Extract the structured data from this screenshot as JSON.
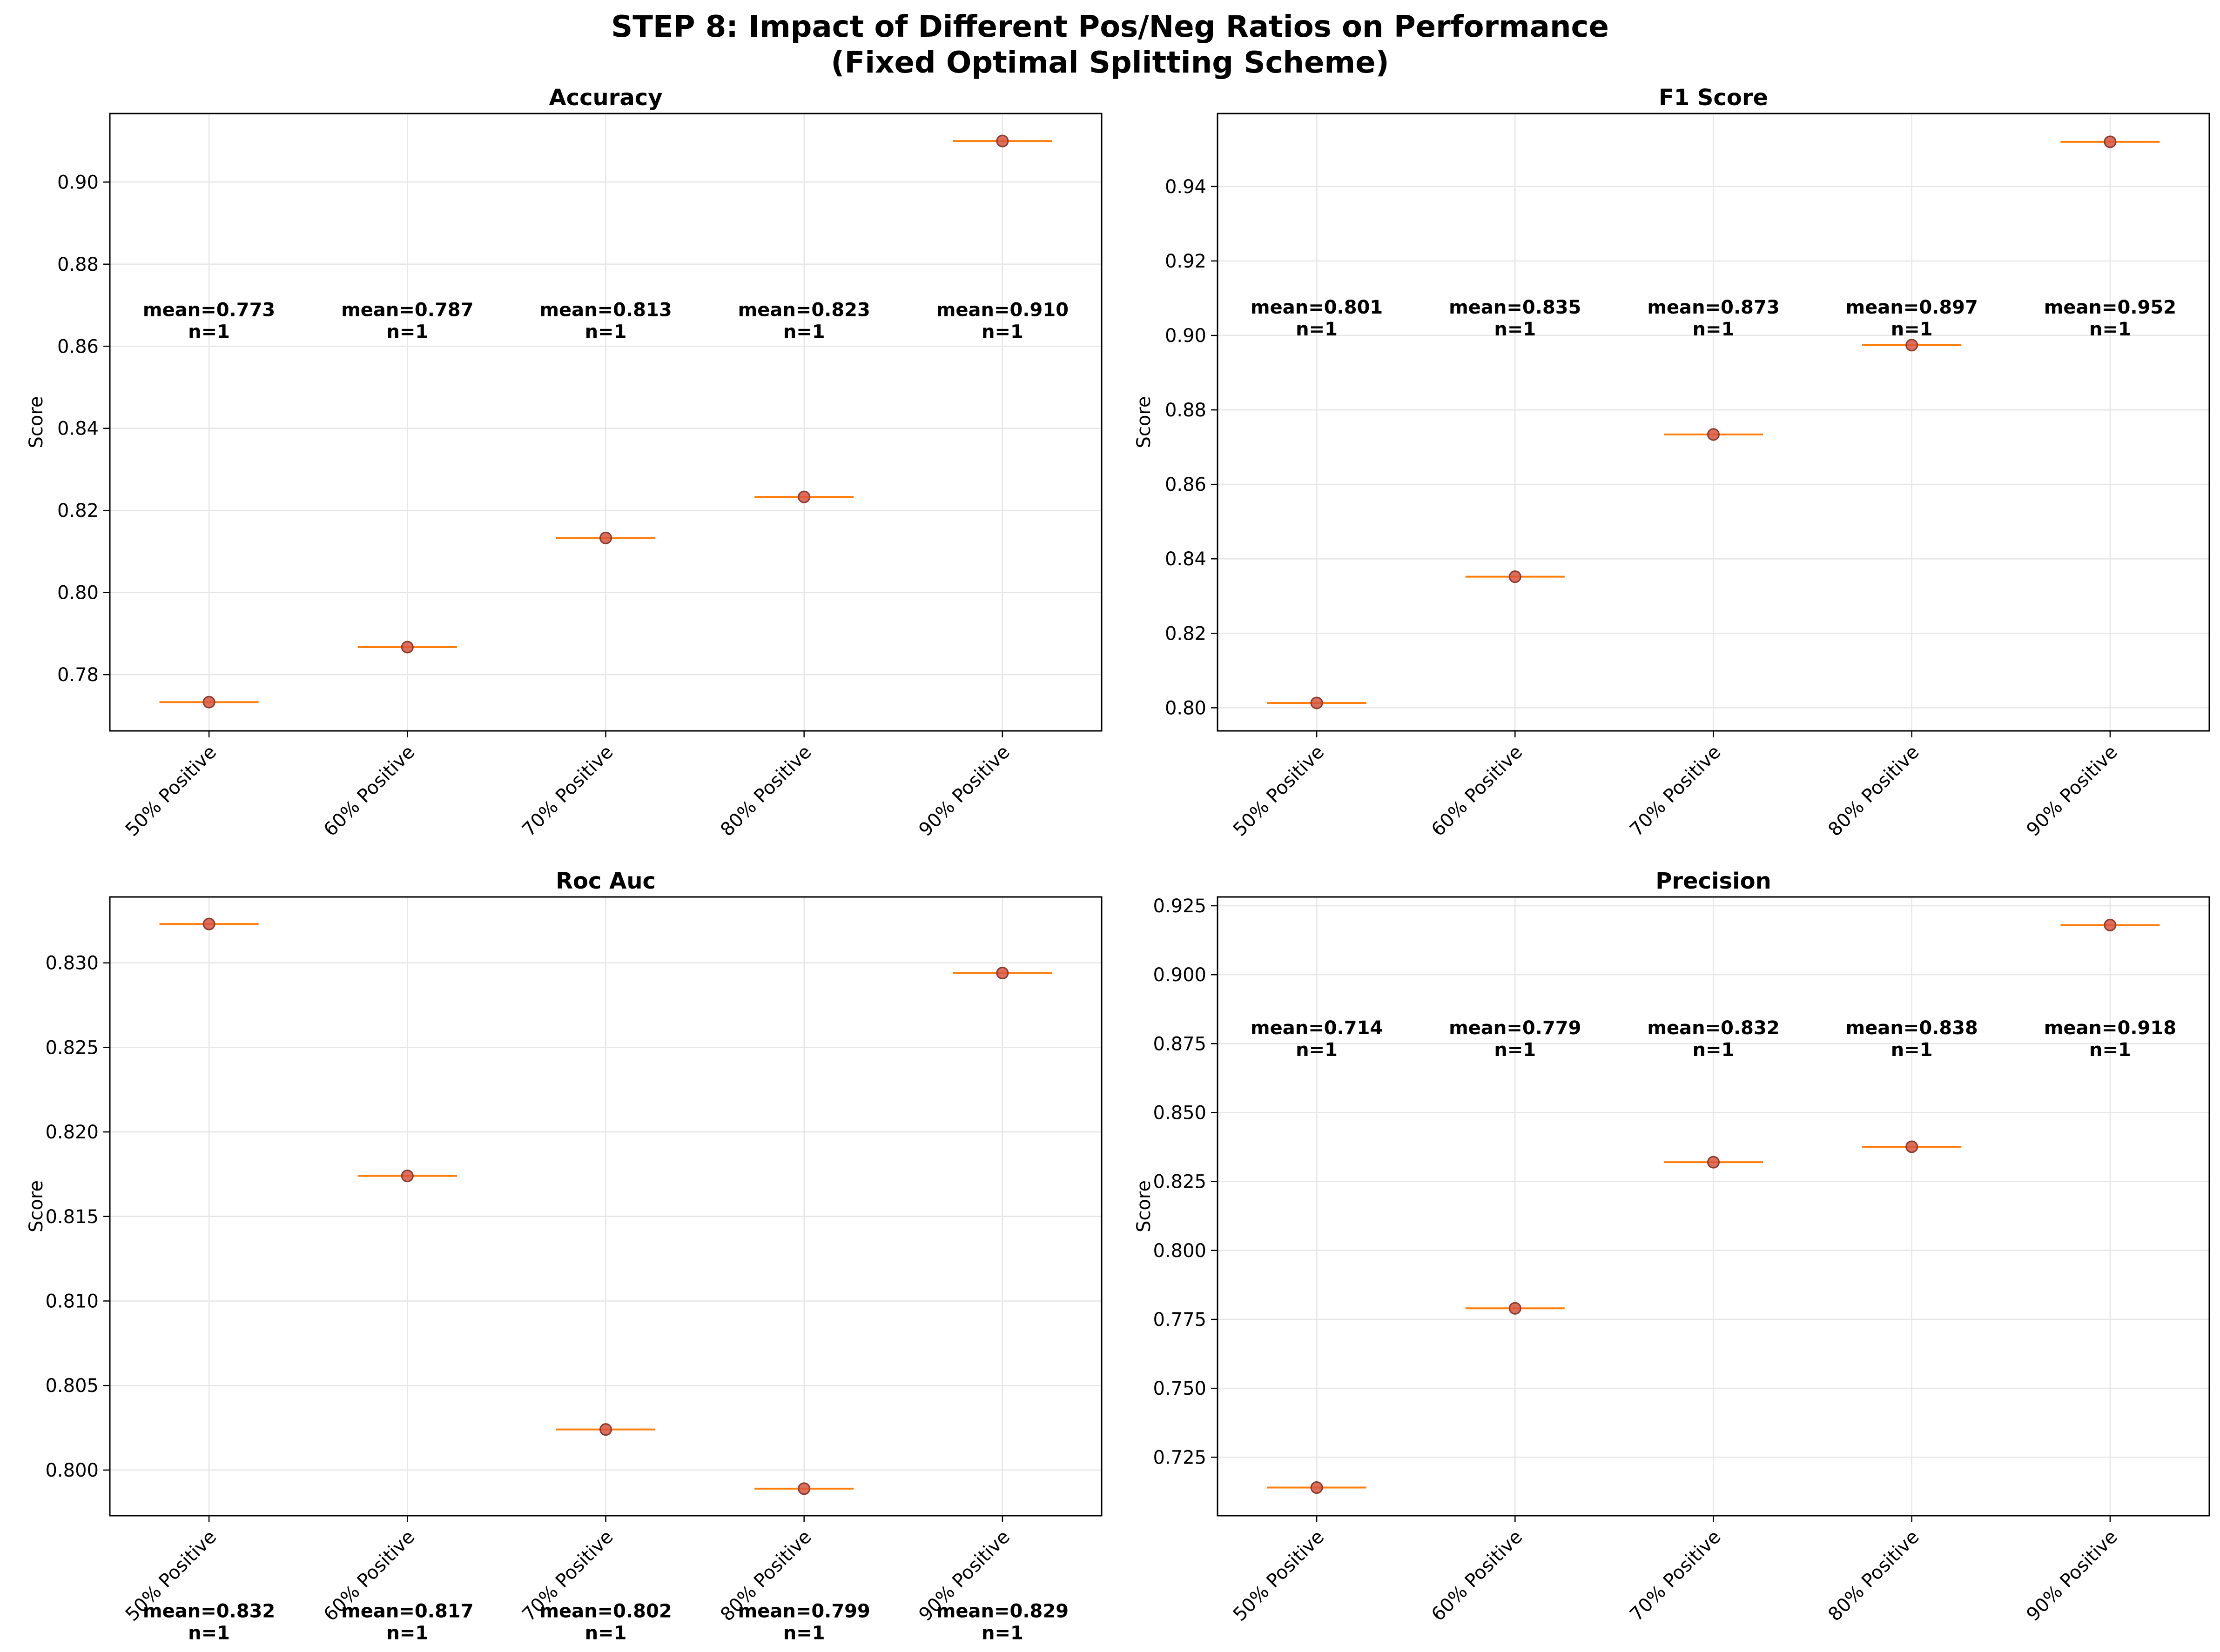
{
  "figure": {
    "title_line1": "STEP 8: Impact of Different Pos/Neg Ratios on Performance",
    "title_line2": "(Fixed Optimal Splitting Scheme)"
  },
  "colors": {
    "median": "#ff7f0e",
    "point_fill": "#d9553f",
    "point_edge": "#8b3a2e",
    "grid": "#e6e6e6",
    "axis": "#000000",
    "text": "#000000"
  },
  "chart_data": [
    {
      "type": "box",
      "title": "Accuracy",
      "ylabel": "Score",
      "xlabel": "",
      "categories": [
        "50% Positive",
        "60% Positive",
        "70% Positive",
        "80% Positive",
        "90% Positive"
      ],
      "values": [
        0.7733,
        0.7867,
        0.8133,
        0.8233,
        0.91
      ],
      "annotations": [
        "mean=0.773",
        "mean=0.787",
        "mean=0.813",
        "mean=0.823",
        "mean=0.910"
      ],
      "counts": [
        "n=1",
        "n=1",
        "n=1",
        "n=1",
        "n=1"
      ],
      "annotation_y": 0.862,
      "ylim": [
        0.7663,
        0.9167
      ],
      "yticks": [
        0.78,
        0.8,
        0.82,
        0.84,
        0.86,
        0.88,
        0.9
      ],
      "ytick_labels": [
        "0.78",
        "0.80",
        "0.82",
        "0.84",
        "0.86",
        "0.88",
        "0.90"
      ],
      "grid": true
    },
    {
      "type": "box",
      "title": "F1 Score",
      "ylabel": "Score",
      "xlabel": "",
      "categories": [
        "50% Positive",
        "60% Positive",
        "70% Positive",
        "80% Positive",
        "90% Positive"
      ],
      "values": [
        0.8013,
        0.8352,
        0.8734,
        0.8974,
        0.952
      ],
      "annotations": [
        "mean=0.801",
        "mean=0.835",
        "mean=0.873",
        "mean=0.897",
        "mean=0.952"
      ],
      "counts": [
        "n=1",
        "n=1",
        "n=1",
        "n=1",
        "n=1"
      ],
      "annotation_y": 0.9,
      "ylim": [
        0.7938,
        0.9596
      ],
      "yticks": [
        0.8,
        0.82,
        0.84,
        0.86,
        0.88,
        0.9,
        0.92,
        0.94
      ],
      "ytick_labels": [
        "0.80",
        "0.82",
        "0.84",
        "0.86",
        "0.88",
        "0.90",
        "0.92",
        "0.94"
      ],
      "grid": true
    },
    {
      "type": "box",
      "title": "Roc Auc",
      "ylabel": "Score",
      "xlabel": "",
      "categories": [
        "50% Positive",
        "60% Positive",
        "70% Positive",
        "80% Positive",
        "90% Positive"
      ],
      "values": [
        0.8323,
        0.8174,
        0.8024,
        0.7989,
        0.8294
      ],
      "annotations": [
        "mean=0.832",
        "mean=0.817",
        "mean=0.802",
        "mean=0.799",
        "mean=0.829"
      ],
      "counts": [
        "n=1",
        "n=1",
        "n=1",
        "n=1",
        "n=1"
      ],
      "annotation_y": 0.79,
      "ylim": [
        0.7973,
        0.8339
      ],
      "yticks": [
        0.8,
        0.805,
        0.81,
        0.815,
        0.82,
        0.825,
        0.83
      ],
      "ytick_labels": [
        "0.800",
        "0.805",
        "0.810",
        "0.815",
        "0.820",
        "0.825",
        "0.830"
      ],
      "grid": true
    },
    {
      "type": "box",
      "title": "Precision",
      "ylabel": "Score",
      "xlabel": "",
      "categories": [
        "50% Positive",
        "60% Positive",
        "70% Positive",
        "80% Positive",
        "90% Positive"
      ],
      "values": [
        0.714,
        0.779,
        0.832,
        0.8376,
        0.918
      ],
      "annotations": [
        "mean=0.714",
        "mean=0.779",
        "mean=0.832",
        "mean=0.838",
        "mean=0.918"
      ],
      "counts": [
        "n=1",
        "n=1",
        "n=1",
        "n=1",
        "n=1"
      ],
      "annotation_y": 0.8705,
      "ylim": [
        0.7038,
        0.9282
      ],
      "yticks": [
        0.725,
        0.75,
        0.775,
        0.8,
        0.825,
        0.85,
        0.875,
        0.9,
        0.925
      ],
      "ytick_labels": [
        "0.725",
        "0.750",
        "0.775",
        "0.800",
        "0.825",
        "0.850",
        "0.875",
        "0.900",
        "0.925"
      ],
      "grid": true
    }
  ]
}
